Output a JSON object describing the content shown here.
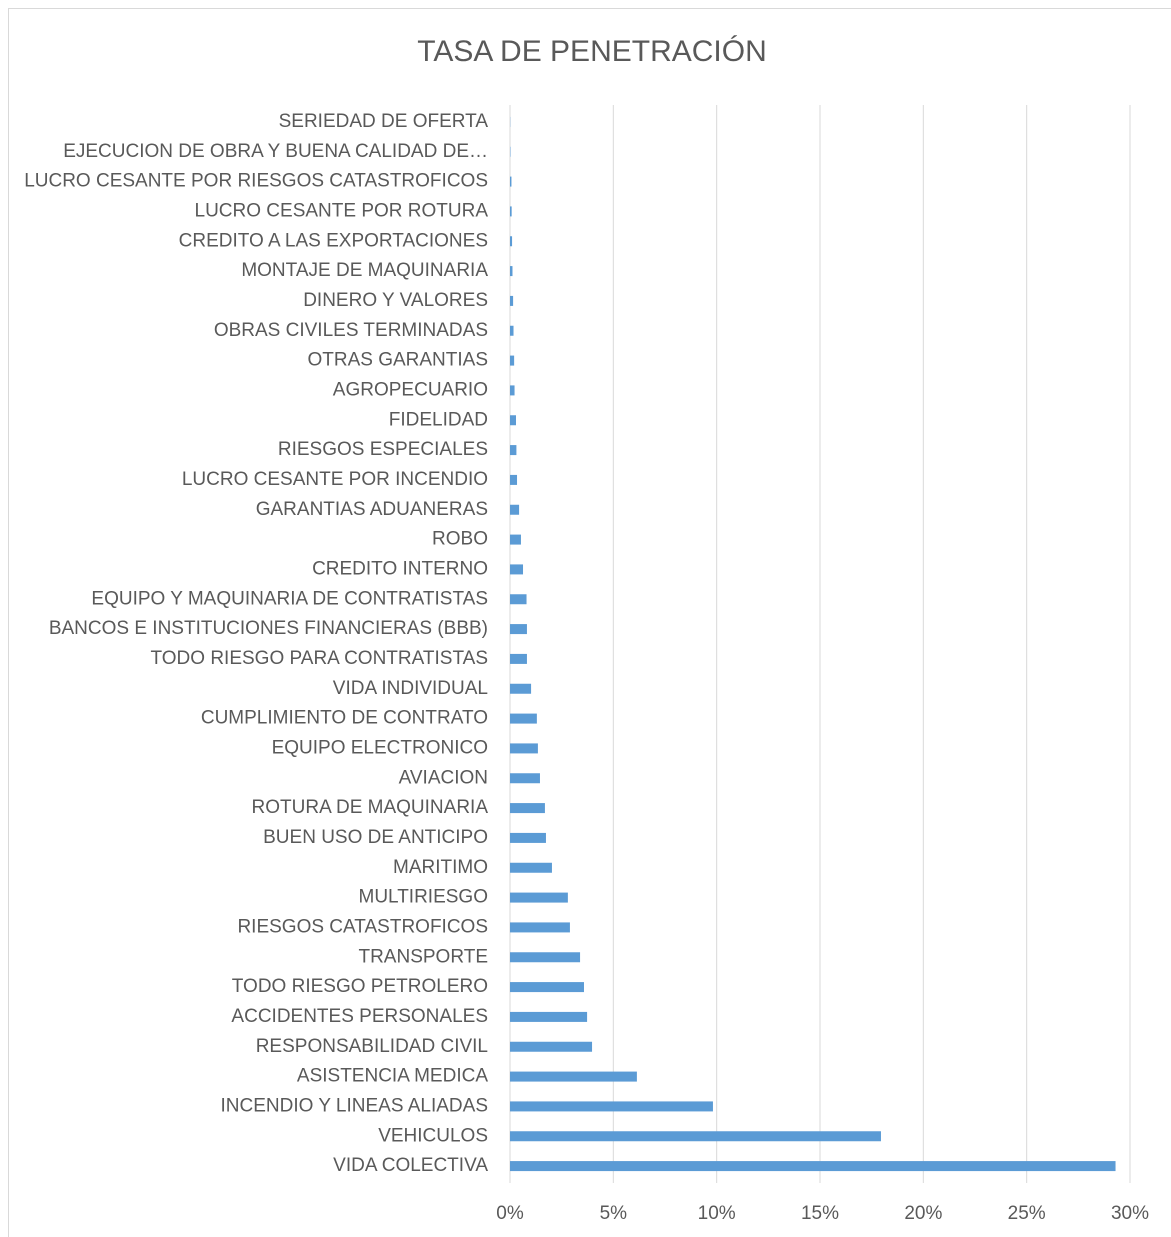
{
  "chart_data": {
    "type": "barh",
    "title": "TASA DE PENETRACIÓN",
    "color": "#5b9bd5",
    "grid": true,
    "categories": [
      "SERIEDAD DE OFERTA",
      "EJECUCION DE OBRA Y BUENA CALIDAD DE…",
      "LUCRO CESANTE POR RIESGOS CATASTROFICOS",
      "LUCRO CESANTE POR ROTURA",
      "CREDITO A LAS EXPORTACIONES",
      "MONTAJE DE MAQUINARIA",
      "DINERO Y VALORES",
      "OBRAS CIVILES TERMINADAS",
      "OTRAS GARANTIAS",
      "AGROPECUARIO",
      "FIDELIDAD",
      "RIESGOS ESPECIALES",
      "LUCRO CESANTE POR INCENDIO",
      "GARANTIAS ADUANERAS",
      "ROBO",
      "CREDITO INTERNO",
      "EQUIPO Y MAQUINARIA DE CONTRATISTAS",
      "BANCOS E INSTITUCIONES FINANCIERAS (BBB)",
      "TODO RIESGO PARA CONTRATISTAS",
      "VIDA INDIVIDUAL",
      "CUMPLIMIENTO DE CONTRATO",
      "EQUIPO ELECTRONICO",
      "AVIACION",
      "ROTURA DE MAQUINARIA",
      "BUEN USO DE ANTICIPO",
      "MARITIMO",
      "MULTIRIESGO",
      "RIESGOS CATASTROFICOS",
      "TRANSPORTE",
      "TODO RIESGO PETROLERO",
      "ACCIDENTES PERSONALES",
      "RESPONSABILIDAD CIVIL",
      "ASISTENCIA MEDICA",
      "INCENDIO Y LINEAS ALIADAS",
      "VEHICULOS",
      "VIDA COLECTIVA"
    ],
    "values": [
      0.01,
      0.02,
      0.07,
      0.08,
      0.1,
      0.12,
      0.15,
      0.17,
      0.2,
      0.22,
      0.29,
      0.31,
      0.34,
      0.44,
      0.53,
      0.63,
      0.8,
      0.82,
      0.82,
      1.02,
      1.3,
      1.35,
      1.45,
      1.69,
      1.74,
      2.03,
      2.8,
      2.9,
      3.39,
      3.58,
      3.73,
      3.97,
      6.14,
      9.82,
      17.95,
      29.3
    ],
    "xlim": [
      0,
      30
    ],
    "xticks": [
      {
        "value": 0,
        "label": "0%"
      },
      {
        "value": 5,
        "label": "5%"
      },
      {
        "value": 10,
        "label": "10%"
      },
      {
        "value": 15,
        "label": "15%"
      },
      {
        "value": 20,
        "label": "20%"
      },
      {
        "value": 25,
        "label": "25%"
      },
      {
        "value": 30,
        "label": "30%"
      }
    ]
  }
}
